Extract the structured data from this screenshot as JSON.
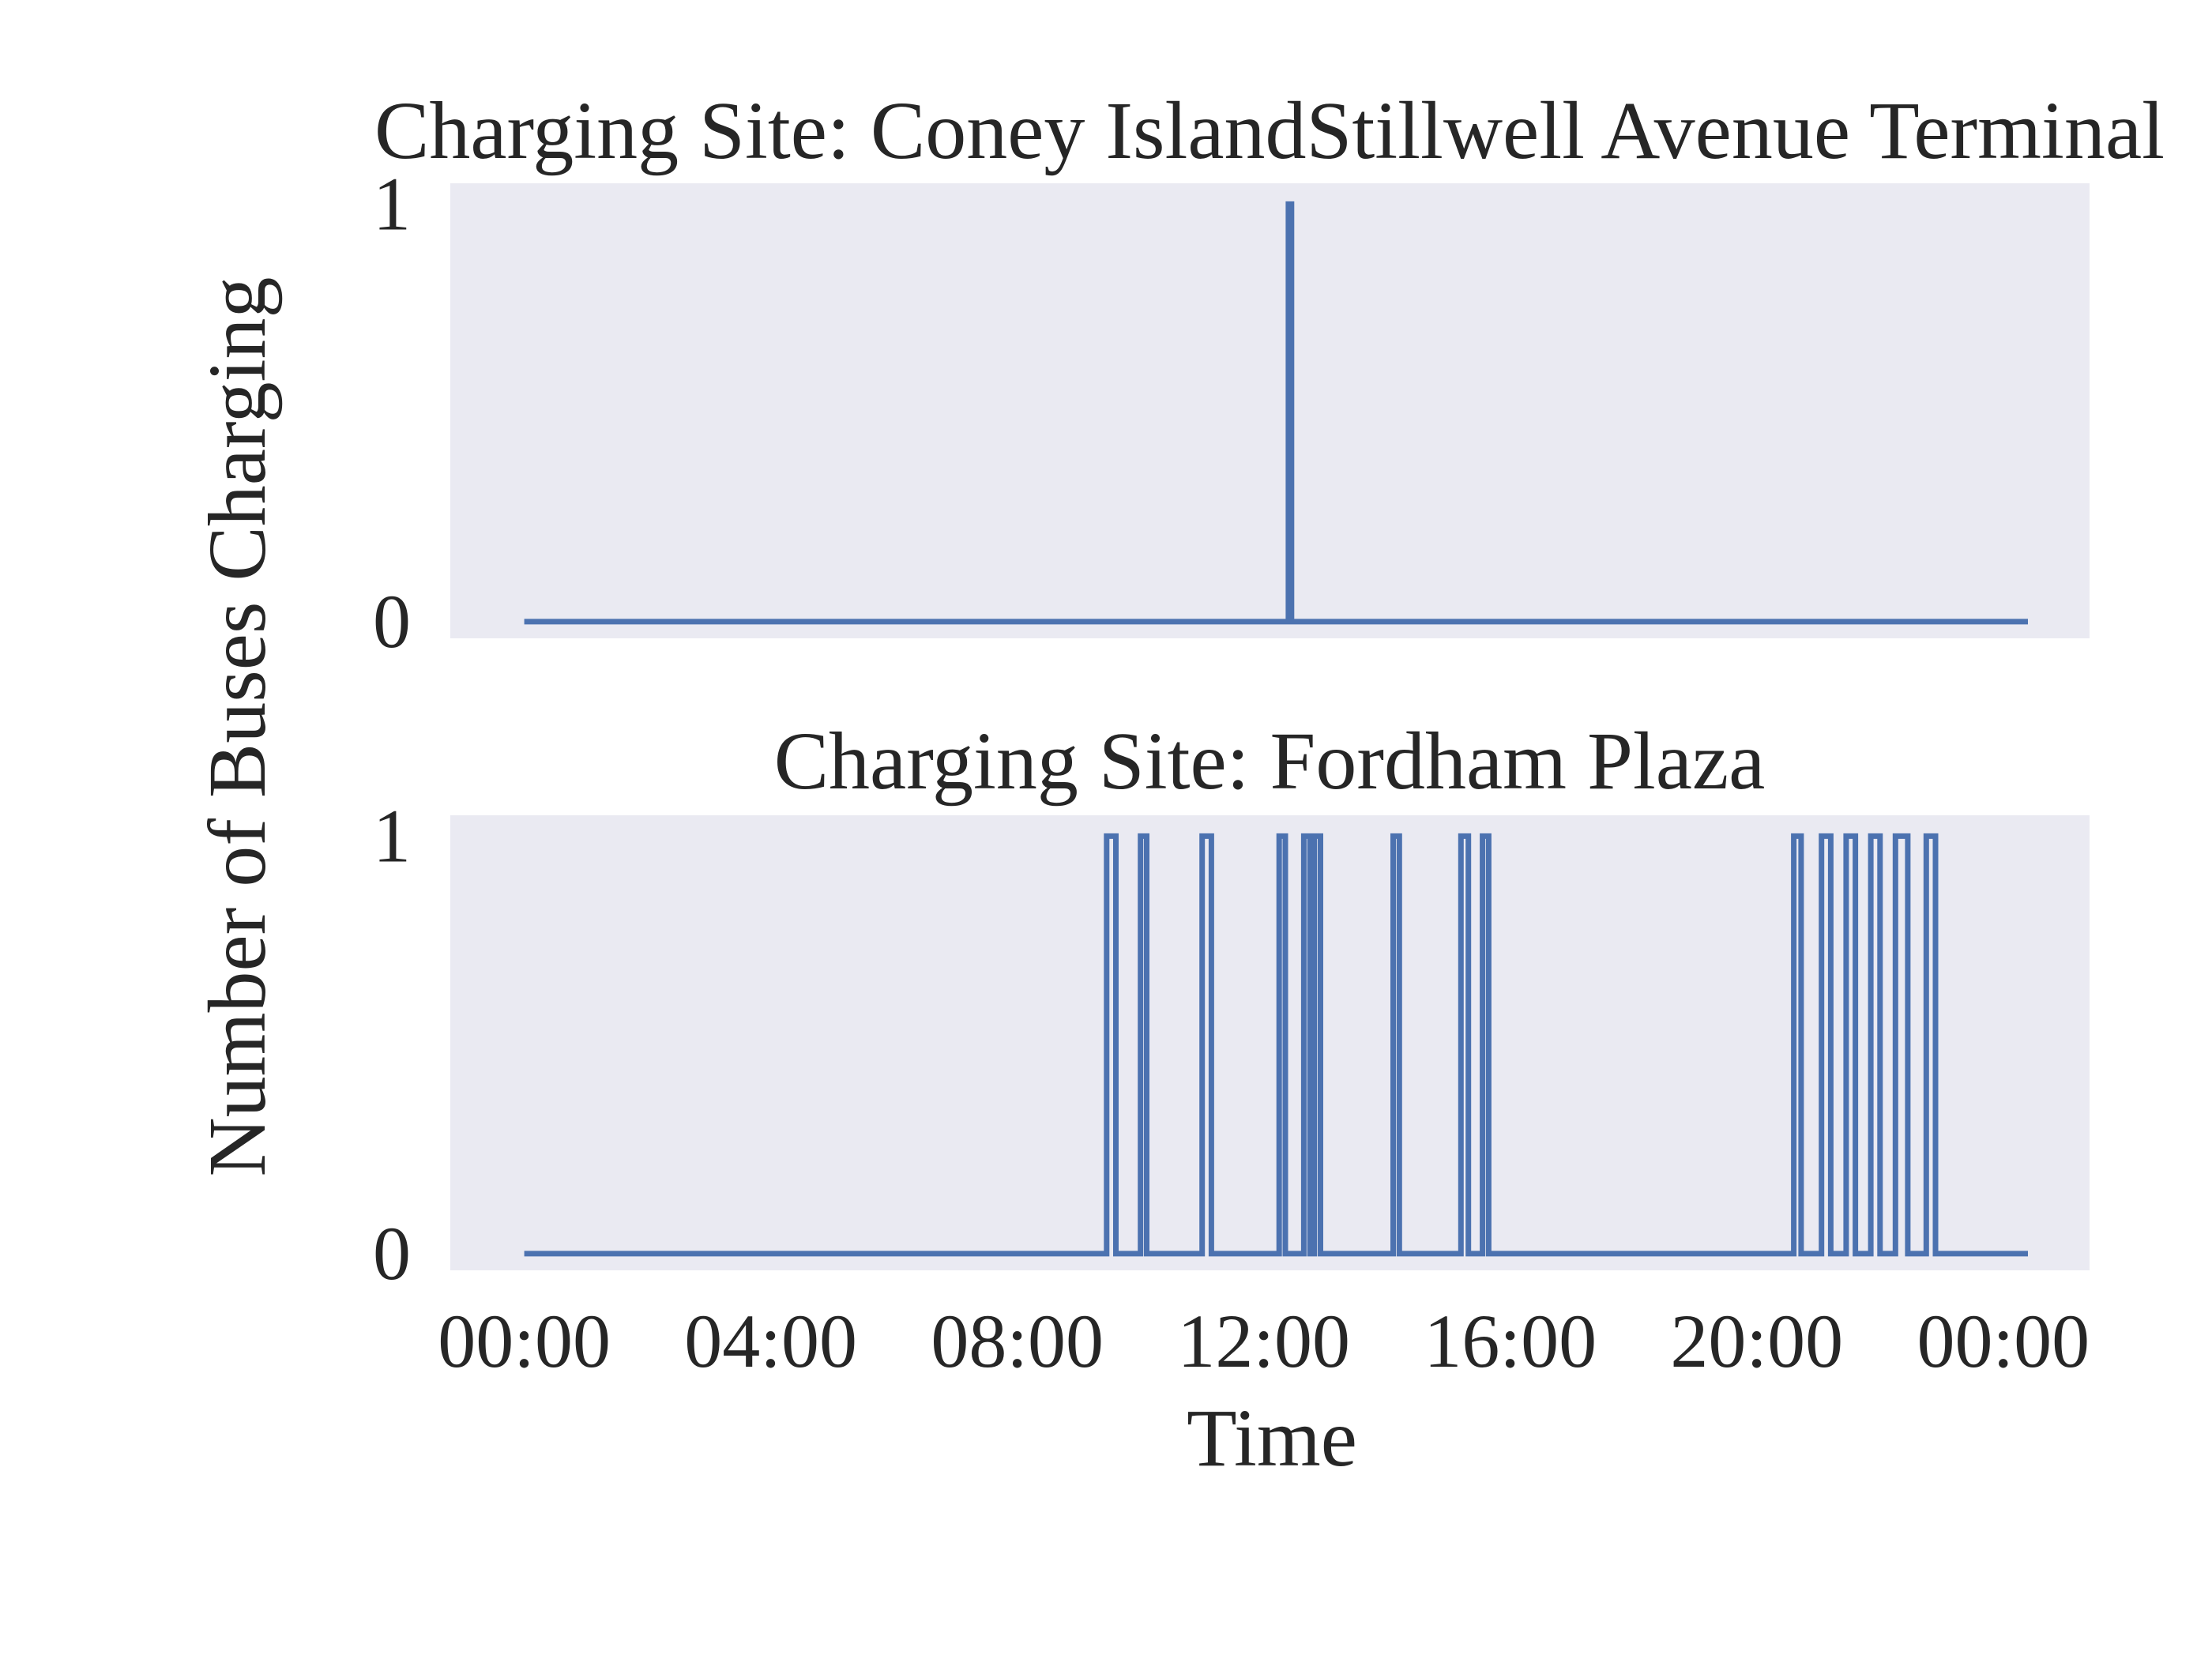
{
  "chart_data": {
    "type": "line",
    "shared_axis_labels": {
      "ylabel": "Number of Buses Charging",
      "xlabel": "Time"
    },
    "x_tick_labels": [
      "00:00",
      "04:00",
      "08:00",
      "12:00",
      "16:00",
      "20:00",
      "00:00"
    ],
    "x_range_hours": [
      -1.2,
      25.4
    ],
    "panels": [
      {
        "title": "Charging Site: Coney IslandStillwell Avenue Terminal",
        "ylim": [
          -0.04,
          1.05
        ],
        "y_ticks": [
          0,
          1
        ],
        "y_tick_labels": [
          "0",
          "1"
        ],
        "grid": false,
        "series": [
          {
            "color": "#4c72b0",
            "start_hour": 0,
            "end_hour": 24.4,
            "charging_intervals_hours": [
              [
                12.4,
                12.45
              ]
            ]
          }
        ]
      },
      {
        "title": "Charging Site: Fordham Plaza",
        "ylim": [
          -0.04,
          1.05
        ],
        "y_ticks": [
          0,
          1
        ],
        "y_tick_labels": [
          "0",
          "1"
        ],
        "grid": false,
        "series": [
          {
            "color": "#4c72b0",
            "start_hour": 0,
            "end_hour": 24.4,
            "charging_intervals_hours": [
              [
                9.45,
                9.6
              ],
              [
                10.0,
                10.1
              ],
              [
                11.0,
                11.15
              ],
              [
                12.25,
                12.35
              ],
              [
                12.65,
                12.75
              ],
              [
                12.82,
                12.92
              ],
              [
                14.1,
                14.2
              ],
              [
                15.2,
                15.32
              ],
              [
                15.55,
                15.65
              ],
              [
                20.6,
                20.72
              ],
              [
                21.05,
                21.2
              ],
              [
                21.45,
                21.6
              ],
              [
                21.85,
                22.0
              ],
              [
                22.25,
                22.45
              ],
              [
                22.75,
                22.9
              ]
            ]
          }
        ]
      }
    ]
  }
}
